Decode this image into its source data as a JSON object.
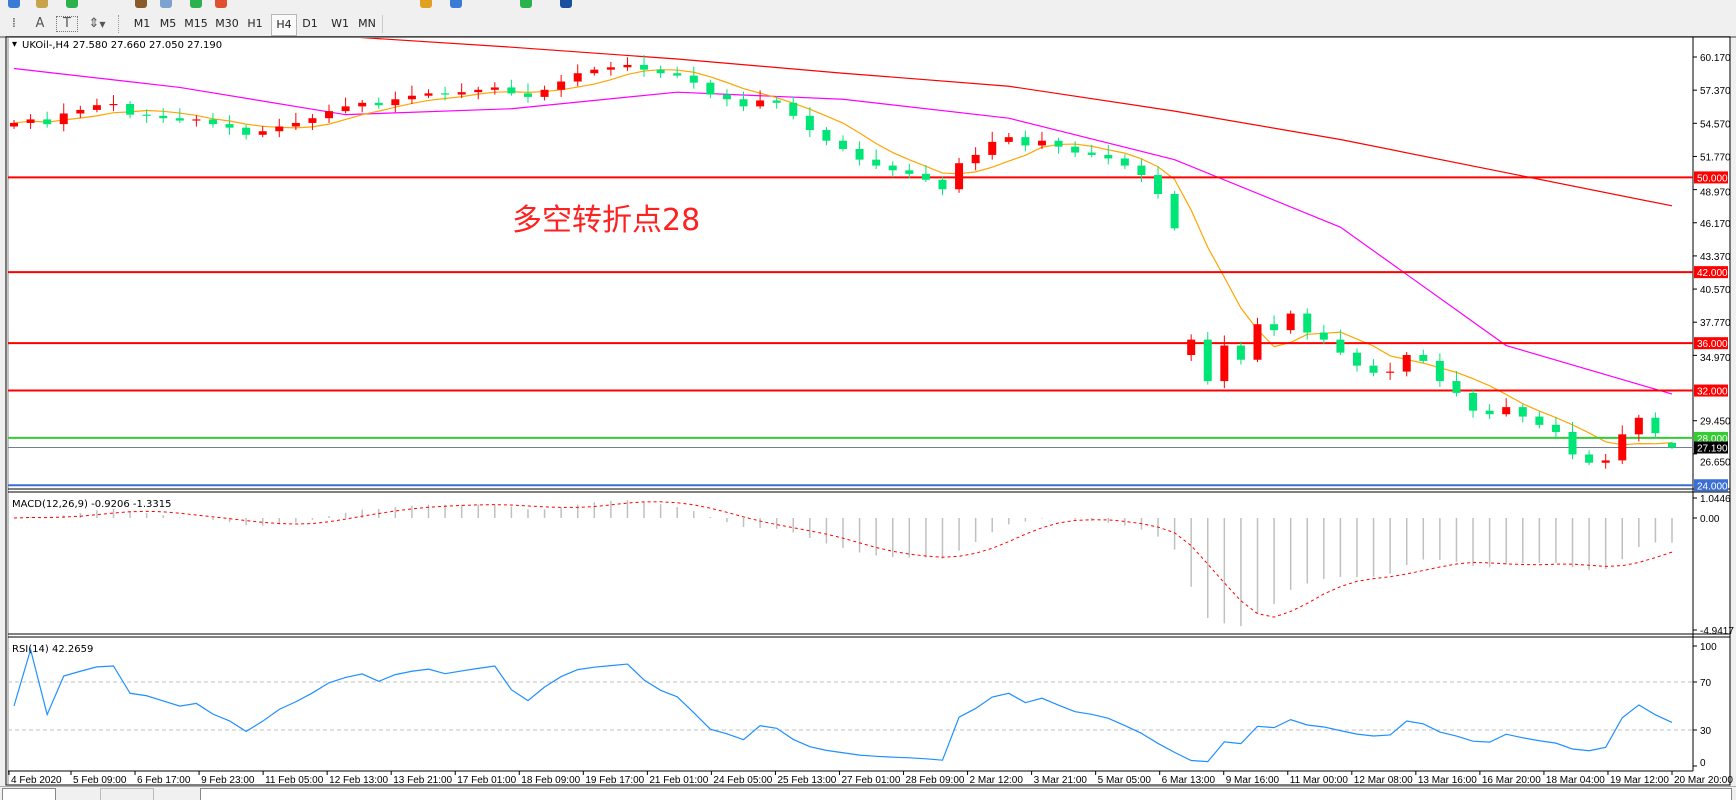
{
  "toolbar": {
    "tools": [
      {
        "name": "period-separators-icon",
        "glyph": "⁞"
      },
      {
        "name": "text-icon",
        "glyph": "A"
      },
      {
        "name": "text-label-icon",
        "glyph": "T"
      },
      {
        "name": "arrows-icon",
        "glyph": "⇕"
      }
    ],
    "timeframes": [
      "M1",
      "M5",
      "M15",
      "M30",
      "H1",
      "H4",
      "D1",
      "W1",
      "MN"
    ],
    "selected_timeframe": "H4"
  },
  "chart": {
    "header": "UKOil-,H4  27.580 27.660 27.050 27.190",
    "annotation": "多空转折点28",
    "annotation_color": "#ff2020",
    "price_labels": [
      "60.170",
      "57.370",
      "54.570",
      "51.770",
      "48.970",
      "46.170",
      "43.370",
      "40.570",
      "37.770",
      "34.970",
      "29.450",
      "26.650"
    ],
    "price_label_values": [
      60.17,
      57.37,
      54.57,
      51.77,
      48.97,
      46.17,
      43.37,
      40.57,
      37.77,
      34.97,
      29.45,
      26.65
    ],
    "levels": [
      {
        "value": 50.0,
        "label": "50.000",
        "color": "#ff0000"
      },
      {
        "value": 42.0,
        "label": "42.000",
        "color": "#ff0000"
      },
      {
        "value": 36.0,
        "label": "36.000",
        "color": "#ff0000"
      },
      {
        "value": 32.0,
        "label": "32.000",
        "color": "#ff0000"
      },
      {
        "value": 28.0,
        "label": "28.000",
        "color": "#33cc33"
      },
      {
        "value": 24.0,
        "label": "24.000",
        "color": "#3b6fd4"
      }
    ],
    "current_price": {
      "value": 27.19,
      "label": "27.190"
    },
    "colors": {
      "bull": "#ff0000",
      "bear": "#00e676",
      "ma_fast": "#ffa500",
      "ma_mid": "#ff00ff",
      "ma_slow": "#ff0000"
    }
  },
  "chart_data": {
    "type": "candlestick",
    "symbol": "UKOil-",
    "timeframe": "H4",
    "opens": [
      54.3,
      54.6,
      54.9,
      54.5,
      55.4,
      55.7,
      56.1,
      56.2,
      55.3,
      55.2,
      55.0,
      54.8,
      54.9,
      54.5,
      54.2,
      53.6,
      53.9,
      54.3,
      54.6,
      55.0,
      55.6,
      56.0,
      56.3,
      56.1,
      56.6,
      56.9,
      57.1,
      57.0,
      57.2,
      57.4,
      57.6,
      57.1,
      56.8,
      57.4,
      58.1,
      58.8,
      59.1,
      59.3,
      59.5,
      59.1,
      58.8,
      58.6,
      58.0,
      57.0,
      56.6,
      56.0,
      56.5,
      56.3,
      55.2,
      54.0,
      53.1,
      52.4,
      51.5,
      51.0,
      50.6,
      50.3,
      49.8,
      49.0,
      51.2,
      51.9,
      53.0,
      53.4,
      52.7,
      53.1,
      52.6,
      52.1,
      51.9,
      51.6,
      51.0,
      50.2,
      48.6,
      35.0,
      36.3,
      32.8,
      35.8,
      34.6,
      37.6,
      37.1,
      38.5,
      36.9,
      36.3,
      35.2,
      34.1,
      33.5,
      33.6,
      35.0,
      34.5,
      32.8,
      31.8,
      30.3,
      30.0,
      30.6,
      29.8,
      29.1,
      28.5,
      26.6,
      25.9,
      26.1,
      28.3,
      29.7,
      27.58
    ],
    "closes": [
      54.6,
      54.9,
      54.5,
      55.4,
      55.7,
      56.1,
      56.2,
      55.3,
      55.2,
      55.0,
      54.8,
      54.9,
      54.5,
      54.2,
      53.6,
      53.9,
      54.3,
      54.6,
      55.0,
      55.6,
      56.0,
      56.3,
      56.1,
      56.6,
      56.9,
      57.1,
      57.0,
      57.2,
      57.4,
      57.6,
      57.1,
      56.8,
      57.4,
      58.1,
      58.8,
      59.1,
      59.3,
      59.5,
      59.1,
      58.8,
      58.6,
      58.0,
      57.0,
      56.6,
      56.0,
      56.5,
      56.3,
      55.2,
      54.0,
      53.1,
      52.4,
      51.5,
      51.0,
      50.6,
      50.3,
      49.8,
      49.0,
      51.2,
      51.9,
      53.0,
      53.4,
      52.7,
      53.1,
      52.6,
      52.1,
      51.9,
      51.6,
      51.0,
      50.2,
      48.6,
      45.7,
      36.3,
      32.8,
      35.8,
      34.6,
      37.6,
      37.1,
      38.5,
      36.9,
      36.3,
      35.2,
      34.1,
      33.5,
      33.6,
      35.0,
      34.5,
      32.8,
      31.8,
      30.3,
      30.0,
      30.6,
      29.8,
      29.1,
      28.5,
      26.6,
      25.9,
      26.1,
      28.3,
      29.7,
      28.4,
      27.19
    ],
    "last_bar": {
      "open": 27.58,
      "high": 27.66,
      "low": 27.05,
      "close": 27.19
    },
    "ma_mid_samples": [
      59.2,
      57.6,
      55.3,
      55.8,
      57.2,
      56.6,
      55.0,
      51.5,
      45.8,
      35.8,
      31.7
    ],
    "ma_slow_samples": [
      63.7,
      62.8,
      61.9,
      61.0,
      60.0,
      58.8,
      57.7,
      55.6,
      53.2,
      50.4,
      47.6
    ],
    "ylim": [
      24.0,
      61.0
    ],
    "time_labels": [
      "4 Feb 2020",
      "5 Feb 09:00",
      "6 Feb 17:00",
      "9 Feb 23:00",
      "11 Feb 05:00",
      "12 Feb 13:00",
      "13 Feb 21:00",
      "17 Feb 01:00",
      "18 Feb 09:00",
      "19 Feb 17:00",
      "21 Feb 01:00",
      "24 Feb 05:00",
      "25 Feb 13:00",
      "27 Feb 01:00",
      "28 Feb 09:00",
      "2 Mar 12:00",
      "3 Mar 21:00",
      "5 Mar 05:00",
      "6 Mar 13:00",
      "9 Mar 16:00",
      "11 Mar 00:00",
      "12 Mar 08:00",
      "13 Mar 16:00",
      "16 Mar 20:00",
      "18 Mar 04:00",
      "19 Mar 12:00",
      "20 Mar 20:00"
    ]
  },
  "macd": {
    "header": "MACD(12,26,9) -0.9206 -1.3315",
    "labels": [
      "1.0446",
      "0.00",
      "-4.9417"
    ],
    "max": 1.0446,
    "min": -4.9417,
    "histogram_color": "#c0c0c0",
    "signal_color": "#ff0000"
  },
  "rsi": {
    "header": "RSI(14) 42.2659",
    "labels": [
      "100",
      "70",
      "30",
      "0"
    ],
    "levels": [
      70,
      30
    ],
    "line_color": "#1e90ff"
  }
}
